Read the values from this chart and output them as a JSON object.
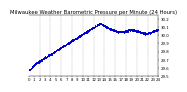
{
  "title": "Milwaukee Weather Barometric Pressure per Minute (24 Hours)",
  "title_fontsize": 3.8,
  "dot_color": "#0000cc",
  "dot_size": 0.5,
  "background_color": "#ffffff",
  "grid_color": "#aaaaaa",
  "tick_fontsize": 2.8,
  "xlim": [
    0,
    1440
  ],
  "ylim": [
    29.5,
    30.25
  ],
  "yticks": [
    29.5,
    29.6,
    29.7,
    29.8,
    29.9,
    30.0,
    30.1,
    30.2
  ],
  "xtick_positions": [
    0,
    60,
    120,
    180,
    240,
    300,
    360,
    420,
    480,
    540,
    600,
    660,
    720,
    780,
    840,
    900,
    960,
    1020,
    1080,
    1140,
    1200,
    1260,
    1320,
    1380,
    1440
  ],
  "xtick_labels": [
    "0",
    "1",
    "2",
    "3",
    "4",
    "5",
    "6",
    "7",
    "8",
    "9",
    "10",
    "11",
    "12",
    "13",
    "14",
    "15",
    "16",
    "17",
    "18",
    "19",
    "20",
    "21",
    "22",
    "23",
    "24"
  ],
  "vgrid_positions": [
    120,
    240,
    360,
    480,
    600,
    720,
    840,
    960,
    1080,
    1200,
    1320
  ]
}
